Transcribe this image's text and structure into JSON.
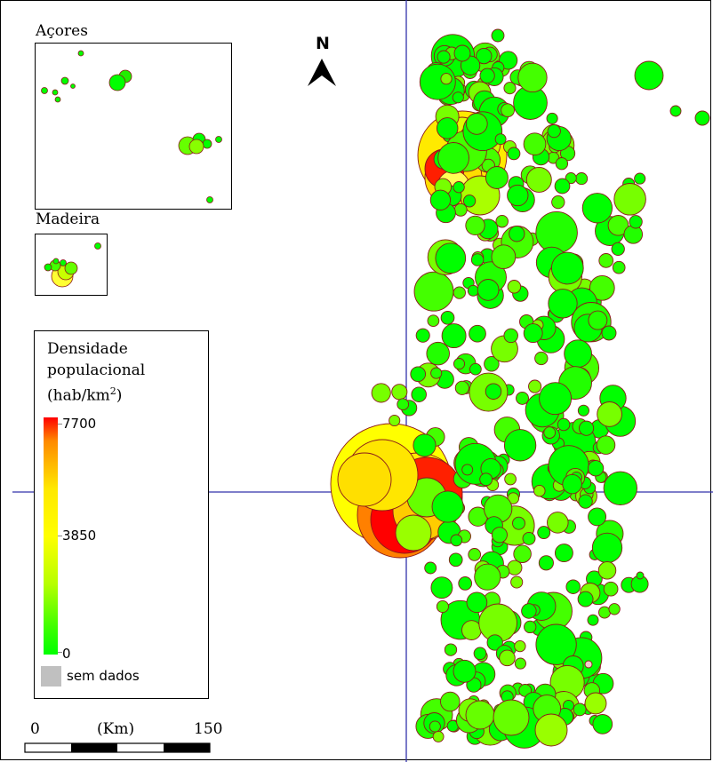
{
  "map": {
    "north_label": "N",
    "insets": {
      "azores_title": "Açores",
      "madeira_title": "Madeira"
    },
    "legend": {
      "title_line1": "Densidade",
      "title_line2": "populacional",
      "unit_base": "(hab/km",
      "unit_exp": "2",
      "unit_close": ")",
      "max_label": "7700",
      "mid_label": "3850",
      "min_label": "0",
      "nodata_label": "sem dados",
      "colors": {
        "low": "#00ff00",
        "mid": "#ffff00",
        "high": "#ff0000",
        "nodata": "#c0c0c0"
      }
    },
    "scale_bar": {
      "start_label": "0",
      "unit_label": "(Km)",
      "end_label": "150"
    },
    "graticule_color": "#3333aa",
    "circle_outline": "#8b1a1a"
  }
}
